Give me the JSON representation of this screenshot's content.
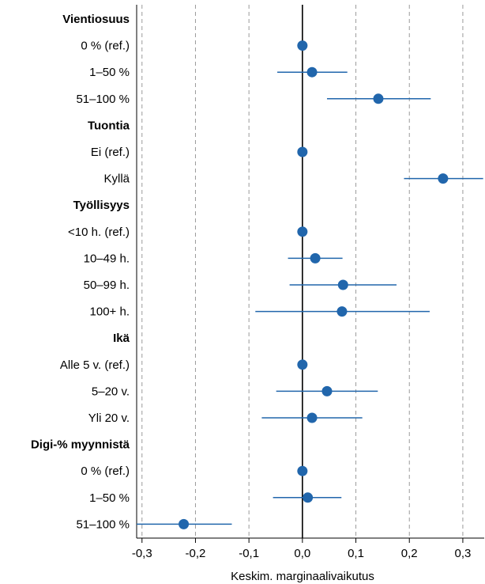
{
  "chart_data": {
    "type": "scatter",
    "subtype": "coefficient-plot",
    "xlabel": "Keskim. marginaalivaikutus",
    "xlim": [
      -0.31,
      0.34
    ],
    "xticks": [
      -0.3,
      -0.2,
      -0.1,
      0.0,
      0.1,
      0.2,
      0.3
    ],
    "xtick_labels": [
      "-0,3",
      "-0,2",
      "-0,1",
      "0,0",
      "0,1",
      "0,2",
      "0,3"
    ],
    "grid": "vertical dashed at ticks",
    "reference_line": 0.0,
    "marker_color": "#2166ac",
    "rows": [
      {
        "label": "Vientiosuus",
        "heading": true
      },
      {
        "label": "0 % (ref.)",
        "estimate": 0.0,
        "ci": [
          0.0,
          0.0
        ]
      },
      {
        "label": "1–50 %",
        "estimate": 0.018,
        "ci": [
          -0.047,
          0.084
        ]
      },
      {
        "label": "51–100 %",
        "estimate": 0.142,
        "ci": [
          0.046,
          0.24
        ]
      },
      {
        "label": "Tuontia",
        "heading": true
      },
      {
        "label": "Ei (ref.)",
        "estimate": 0.0,
        "ci": [
          0.0,
          0.0
        ]
      },
      {
        "label": "Kyllä",
        "estimate": 0.263,
        "ci": [
          0.19,
          0.338
        ]
      },
      {
        "label": "Työllisyys",
        "heading": true
      },
      {
        "label": "<10 h. (ref.)",
        "estimate": 0.0,
        "ci": [
          0.0,
          0.0
        ]
      },
      {
        "label": "10–49 h.",
        "estimate": 0.024,
        "ci": [
          -0.027,
          0.075
        ]
      },
      {
        "label": "50–99 h.",
        "estimate": 0.076,
        "ci": [
          -0.024,
          0.176
        ]
      },
      {
        "label": "100+ h.",
        "estimate": 0.074,
        "ci": [
          -0.088,
          0.238
        ]
      },
      {
        "label": "Ikä",
        "heading": true
      },
      {
        "label": "Alle 5 v. (ref.)",
        "estimate": 0.0,
        "ci": [
          0.0,
          0.0
        ]
      },
      {
        "label": "5–20 v.",
        "estimate": 0.046,
        "ci": [
          -0.049,
          0.141
        ]
      },
      {
        "label": "Yli 20 v.",
        "estimate": 0.018,
        "ci": [
          -0.076,
          0.112
        ]
      },
      {
        "label": "Digi-% myynnistä",
        "heading": true
      },
      {
        "label": "0 % (ref.)",
        "estimate": 0.0,
        "ci": [
          0.0,
          0.0
        ]
      },
      {
        "label": "1–50 %",
        "estimate": 0.01,
        "ci": [
          -0.055,
          0.073
        ]
      },
      {
        "label": "51–100 %",
        "estimate": -0.222,
        "ci": [
          -0.31,
          -0.132
        ]
      }
    ]
  }
}
